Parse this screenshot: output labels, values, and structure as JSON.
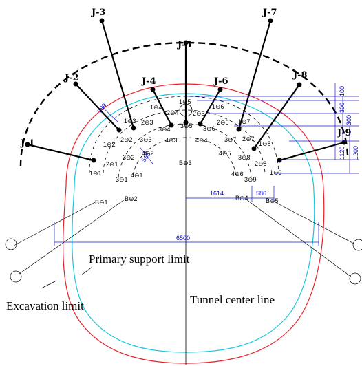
{
  "j_labels": [
    "J-1",
    "J-2",
    "J-3",
    "J-4",
    "J-5",
    "J-6",
    "J-7",
    "J-8",
    "J-9"
  ],
  "hole_labels": {
    "h1": [
      "1⊖1",
      "1⊖2",
      "1⊖3",
      "1⊖4",
      "1⊖5",
      "1⊖6",
      "1⊖7",
      "1⊖8",
      "1⊖9"
    ],
    "h2": [
      "2⊖1",
      "2⊖2",
      "2⊖3",
      "2⊖4",
      "2⊖5",
      "2⊖6",
      "2⊖7",
      "2⊖8"
    ],
    "h3": [
      "3⊖1",
      "3⊖2",
      "3⊖3",
      "3⊖4",
      "3⊖5",
      "3⊖6",
      "3⊖7",
      "3⊖8",
      "3⊖9"
    ],
    "h4": [
      "4⊖1",
      "4⊖2",
      "4⊖3",
      "4⊖4",
      "4⊖5",
      "4⊖6"
    ],
    "b": [
      "B⊖1",
      "B⊖2",
      "B⊖3",
      "B⊖4",
      "B⊖5"
    ]
  },
  "dimensions": {
    "d100": "100",
    "d300a": "300",
    "d300b": "300",
    "d1120": "1120",
    "d1200": "1200",
    "d789": "789",
    "d555": "555",
    "d1614": "1614",
    "d586": "586",
    "d6500": "6500"
  },
  "annotations": {
    "primary_support_limit": "Primary support limit",
    "excavation_limit": "Excavation limit",
    "tunnel_center_line": "Tunnel center line"
  },
  "colors": {
    "excavation": "#e8202a",
    "primary_support": "#16c8dc",
    "dimension": "#1a1acc",
    "lines": "#000000"
  }
}
